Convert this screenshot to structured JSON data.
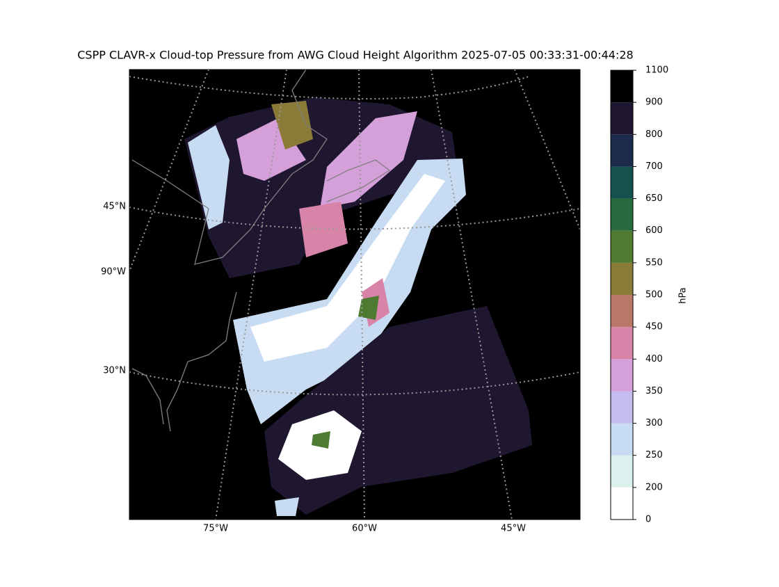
{
  "title": "CSPP CLAVR-x Cloud-top Pressure from AWG Cloud Height Algorithm 2025-07-05 00:33:31-00:44:28",
  "map": {
    "lat_labels": [
      "45°N",
      "90°W",
      "30°N"
    ],
    "lon_labels": [
      "75°W",
      "60°W",
      "45°W"
    ]
  },
  "colorbar": {
    "label": "hPa",
    "ticks": [
      0,
      200,
      250,
      300,
      350,
      400,
      450,
      500,
      550,
      600,
      650,
      700,
      800,
      900,
      1100
    ],
    "colors": [
      "#ffffff",
      "#dcf1ee",
      "#c7dcf2",
      "#c4bbef",
      "#d59fda",
      "#d884a8",
      "#b87867",
      "#8a7b39",
      "#4f7a32",
      "#276a3f",
      "#16504f",
      "#1c2b4b",
      "#1f1730",
      "#000000"
    ]
  }
}
